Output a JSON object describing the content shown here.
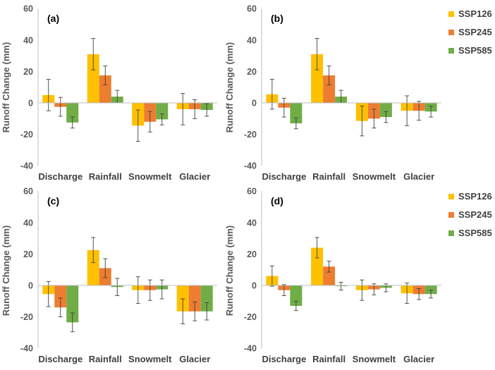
{
  "chart_data": [
    {
      "type": "bar",
      "panel_label": "(a)",
      "ylabel": "Runoff Change (mm)",
      "ylim": [
        -40,
        60
      ],
      "yticks": [
        -40,
        -20,
        0,
        20,
        40,
        60
      ],
      "categories": [
        "Discharge",
        "Rainfall",
        "Snowmelt",
        "Glacier"
      ],
      "series": [
        {
          "name": "SSP126",
          "values": [
            5,
            31,
            -14.5,
            -4
          ],
          "errors": [
            10,
            10,
            10,
            10
          ]
        },
        {
          "name": "SSP245",
          "values": [
            -2.5,
            17.5,
            -12,
            -4
          ],
          "errors": [
            6,
            6,
            6.5,
            6
          ]
        },
        {
          "name": "SSP585",
          "values": [
            -12.5,
            4,
            -10.5,
            -4.5
          ],
          "errors": [
            3.5,
            4,
            3.5,
            4
          ]
        }
      ]
    },
    {
      "type": "bar",
      "panel_label": "(b)",
      "ylabel": "Runoff Change (mm)",
      "ylim": [
        -40,
        60
      ],
      "yticks": [
        -40,
        -20,
        0,
        20,
        40,
        60
      ],
      "categories": [
        "Discharge",
        "Rainfall",
        "Snowmelt",
        "Glacier"
      ],
      "series": [
        {
          "name": "SSP126",
          "values": [
            5.5,
            31,
            -11.5,
            -5
          ],
          "errors": [
            9.5,
            10,
            9.5,
            9.5
          ]
        },
        {
          "name": "SSP245",
          "values": [
            -3,
            17.5,
            -10,
            -5
          ],
          "errors": [
            6,
            6,
            6,
            6
          ]
        },
        {
          "name": "SSP585",
          "values": [
            -13,
            4,
            -9,
            -5.5
          ],
          "errors": [
            3.5,
            4,
            3.5,
            3.5
          ]
        }
      ]
    },
    {
      "type": "bar",
      "panel_label": "(c)",
      "ylabel": "Runoff Change (mm)",
      "ylim": [
        -40,
        60
      ],
      "yticks": [
        -40,
        -20,
        0,
        20,
        40,
        60
      ],
      "categories": [
        "Discharge",
        "Rainfall",
        "Snowmelt",
        "Glacier"
      ],
      "series": [
        {
          "name": "SSP126",
          "values": [
            -5.5,
            22.5,
            -3,
            -16.5
          ],
          "errors": [
            8,
            8,
            8.5,
            8
          ]
        },
        {
          "name": "SSP245",
          "values": [
            -14,
            11,
            -3,
            -16.5
          ],
          "errors": [
            6,
            6,
            6.5,
            6
          ]
        },
        {
          "name": "SSP585",
          "values": [
            -23.5,
            -1,
            -2.5,
            -16.5
          ],
          "errors": [
            6,
            5.5,
            6,
            5.5
          ]
        }
      ]
    },
    {
      "type": "bar",
      "panel_label": "(d)",
      "ylabel": "Runoff Change (mm)",
      "ylim": [
        -40,
        60
      ],
      "yticks": [
        -40,
        -20,
        0,
        20,
        40,
        60
      ],
      "categories": [
        "Discharge",
        "Rainfall",
        "Snowmelt",
        "Glacier"
      ],
      "series": [
        {
          "name": "SSP126",
          "values": [
            6,
            24,
            -3,
            -5
          ],
          "errors": [
            6.5,
            6.5,
            6.5,
            6.5
          ]
        },
        {
          "name": "SSP245",
          "values": [
            -3,
            12,
            -2.5,
            -5.5
          ],
          "errors": [
            3.5,
            3.5,
            3.5,
            3.5
          ]
        },
        {
          "name": "SSP585",
          "values": [
            -13,
            -0.5,
            -1.5,
            -5.5
          ],
          "errors": [
            3,
            2.5,
            2.5,
            2.5
          ]
        }
      ]
    }
  ],
  "legend": [
    {
      "name": "SSP126",
      "color": "#FFC000"
    },
    {
      "name": "SSP245",
      "color": "#ED7D31"
    },
    {
      "name": "SSP585",
      "color": "#70AD47"
    }
  ],
  "colors": {
    "SSP126": "#FFC000",
    "SSP245": "#ED7D31",
    "SSP585": "#70AD47",
    "axis": "#BFBFBF",
    "errorbar": "#404040"
  }
}
